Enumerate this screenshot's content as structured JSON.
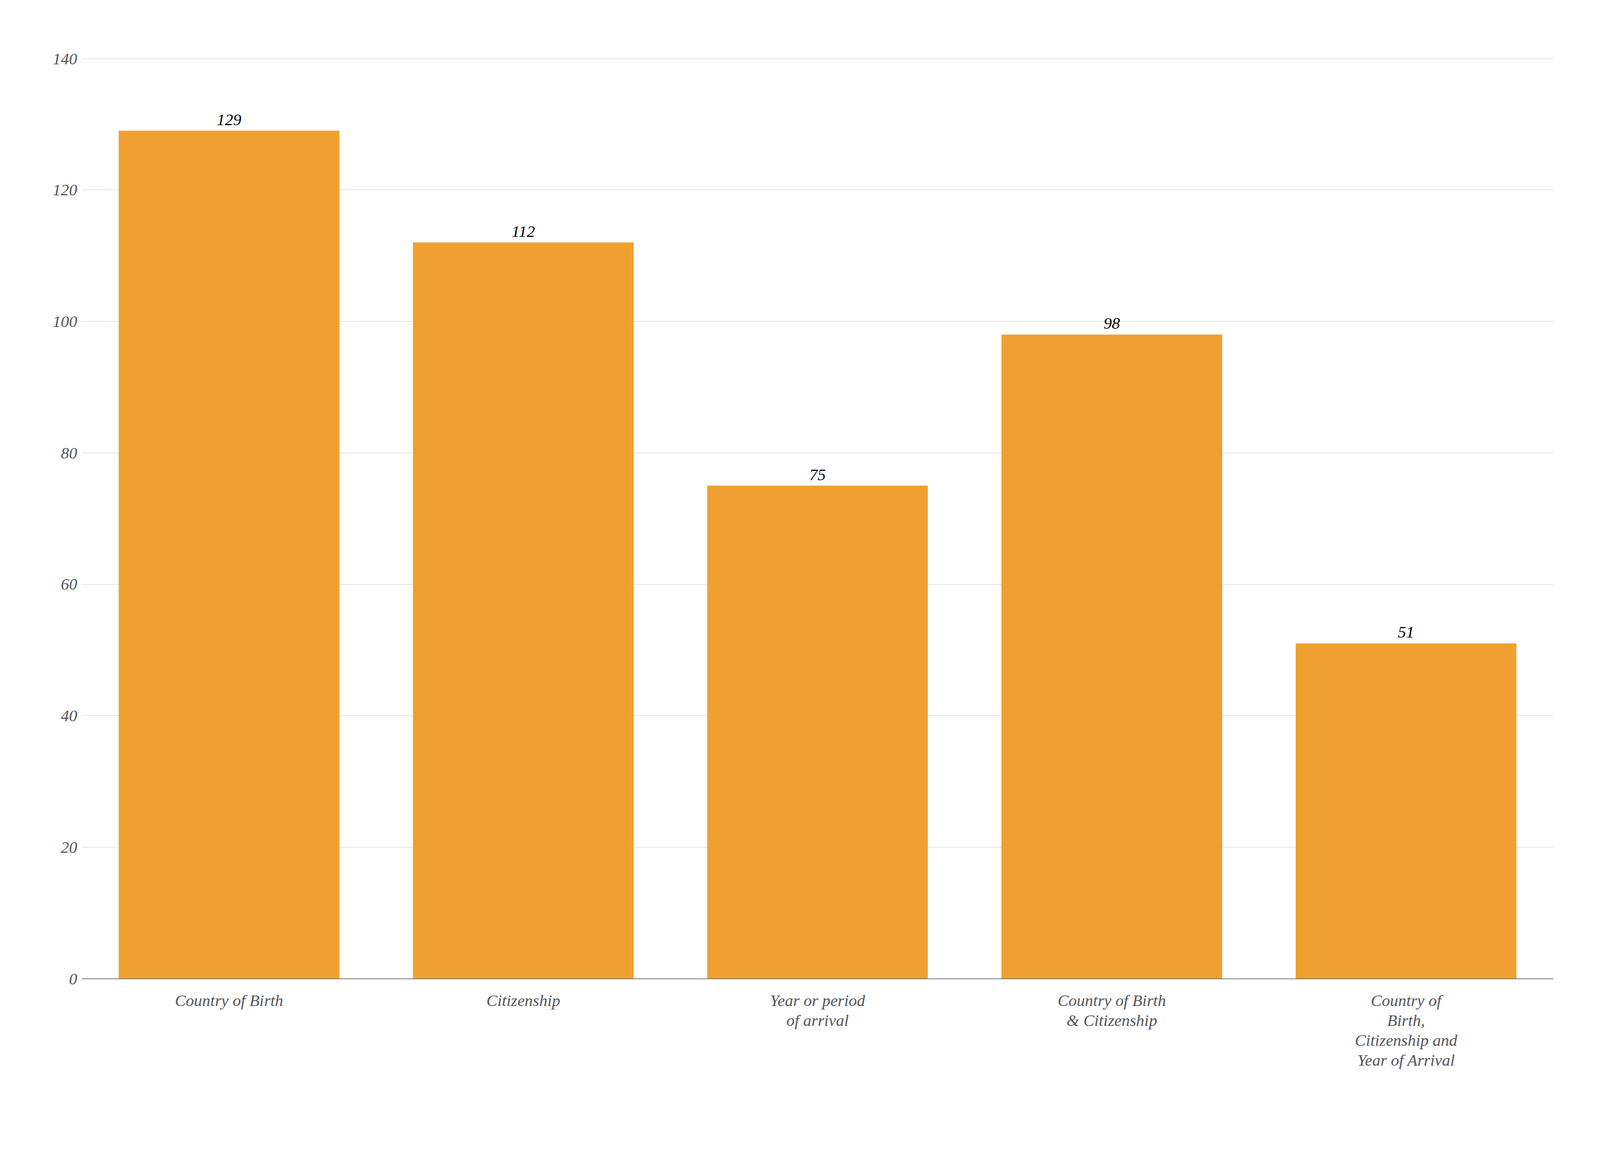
{
  "chart_data": {
    "type": "bar",
    "categories": [
      "Country of Birth",
      "Citizenship",
      "Year or period\nof arrival",
      "Country of Birth\n& Citizenship",
      "Country of\nBirth,\nCitizenship and\nYear of Arrival"
    ],
    "values": [
      129,
      112,
      75,
      98,
      51
    ],
    "color": "#F0A030",
    "ylim": [
      0,
      140
    ],
    "yticks": [
      0,
      20,
      40,
      60,
      80,
      100,
      120,
      140
    ],
    "grid": true,
    "data_labels": true
  }
}
